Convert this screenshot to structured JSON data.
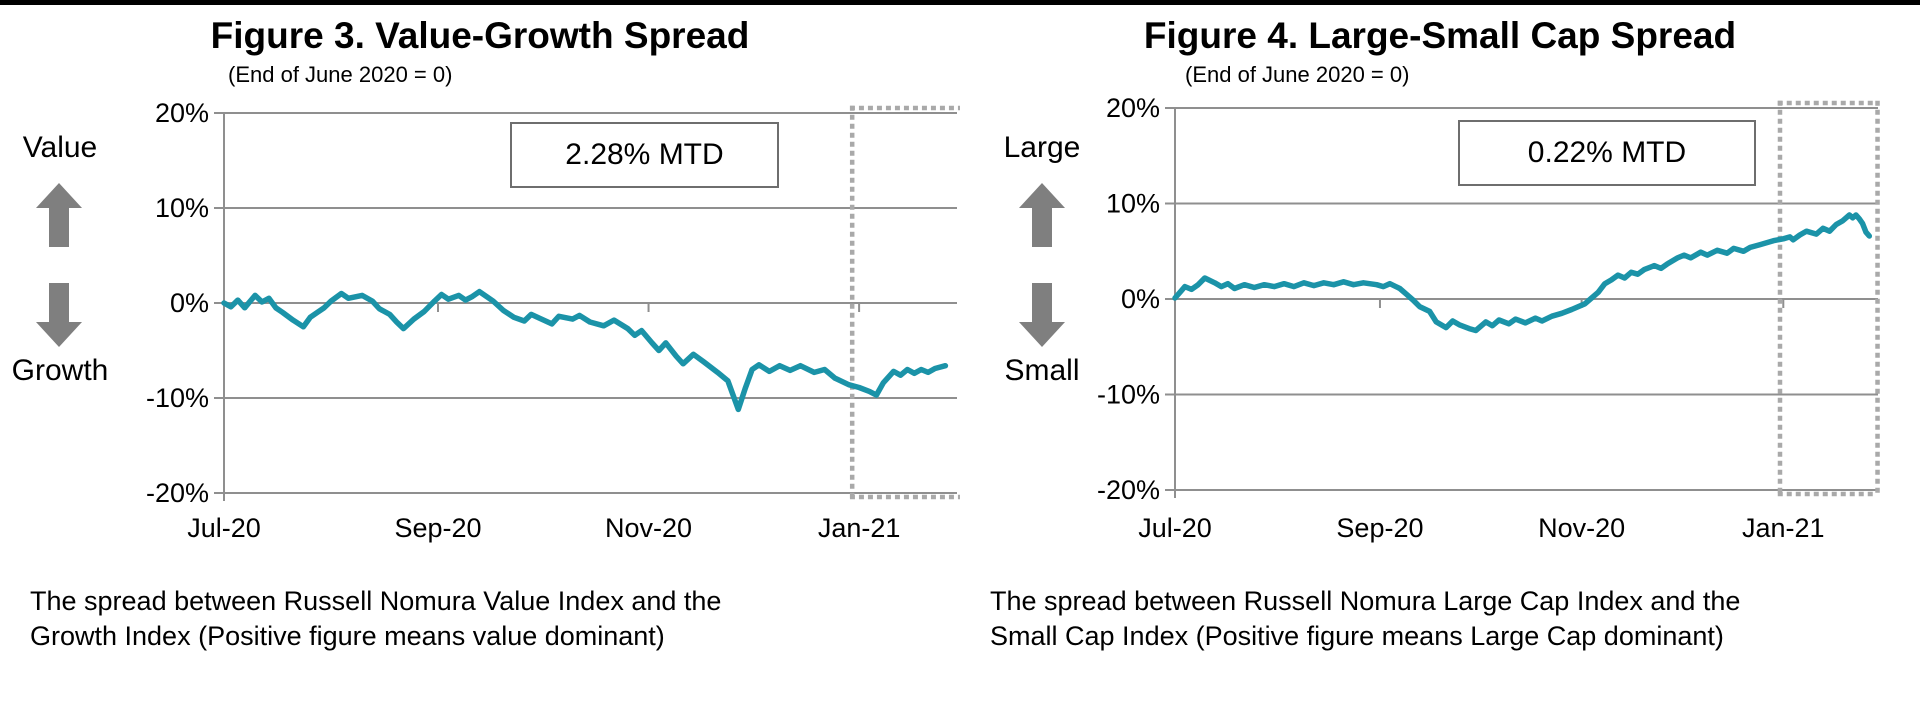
{
  "page": {
    "background_color": "#ffffff",
    "top_bar_color": "#000000",
    "line_color": "#1b93a8",
    "grid_color": "#8f8f8f",
    "highlight_color": "#a9a9a9",
    "arrow_color": "#7f7f7f"
  },
  "figures": [
    {
      "side_top_label": "Value",
      "side_bottom_label": "Growth",
      "caption": [
        "The spread between Russell Nomura Value Index and the",
        "Growth Index (Positive figure means value dominant)"
      ]
    },
    {
      "side_top_label": "Large",
      "side_bottom_label": "Small",
      "caption": [
        "The spread between Russell Nomura Large Cap Index and the",
        "Small Cap Index (Positive figure means Large Cap dominant)"
      ]
    }
  ],
  "chart_data": [
    {
      "type": "line",
      "title": "Figure 3. Value-Growth Spread",
      "subtitle": "(End of June 2020 = 0)",
      "annotation": "2.28% MTD",
      "ylim": [
        -20,
        20
      ],
      "ytick_values": [
        20,
        10,
        0,
        -10,
        -20
      ],
      "ytick_labels": [
        "20%",
        "10%",
        "0%",
        "-10%",
        "-20%"
      ],
      "x_unit": "days since 2020-07-01",
      "x_tick_days": [
        0,
        62,
        123,
        184
      ],
      "x_tick_labels": [
        "Jul-20",
        "Sep-20",
        "Nov-20",
        "Jan-21"
      ],
      "grid": true,
      "legend": "none",
      "highlight_box": {
        "start_day": 182,
        "end_day": 214
      },
      "series": [
        {
          "name": "Value minus Growth spread (%)",
          "points": [
            [
              0,
              0.0
            ],
            [
              2,
              -0.4
            ],
            [
              4,
              0.3
            ],
            [
              6,
              -0.5
            ],
            [
              9,
              0.8
            ],
            [
              11,
              0.1
            ],
            [
              13,
              0.5
            ],
            [
              15,
              -0.5
            ],
            [
              17,
              -1.0
            ],
            [
              20,
              -1.8
            ],
            [
              23,
              -2.5
            ],
            [
              25,
              -1.5
            ],
            [
              27,
              -1.0
            ],
            [
              29,
              -0.5
            ],
            [
              31,
              0.2
            ],
            [
              34,
              1.0
            ],
            [
              36,
              0.5
            ],
            [
              40,
              0.8
            ],
            [
              43,
              0.2
            ],
            [
              45,
              -0.6
            ],
            [
              48,
              -1.2
            ],
            [
              50,
              -2.0
            ],
            [
              52,
              -2.7
            ],
            [
              55,
              -1.7
            ],
            [
              58,
              -0.9
            ],
            [
              61,
              0.2
            ],
            [
              63,
              0.9
            ],
            [
              65,
              0.4
            ],
            [
              68,
              0.8
            ],
            [
              70,
              0.3
            ],
            [
              72,
              0.7
            ],
            [
              74,
              1.2
            ],
            [
              76,
              0.7
            ],
            [
              78,
              0.2
            ],
            [
              81,
              -0.8
            ],
            [
              84,
              -1.5
            ],
            [
              87,
              -1.9
            ],
            [
              89,
              -1.2
            ],
            [
              92,
              -1.7
            ],
            [
              95,
              -2.2
            ],
            [
              97,
              -1.4
            ],
            [
              101,
              -1.7
            ],
            [
              103,
              -1.3
            ],
            [
              106,
              -2.0
            ],
            [
              110,
              -2.4
            ],
            [
              113,
              -1.8
            ],
            [
              117,
              -2.7
            ],
            [
              119,
              -3.4
            ],
            [
              121,
              -2.9
            ],
            [
              124,
              -4.2
            ],
            [
              126,
              -5.0
            ],
            [
              128,
              -4.2
            ],
            [
              131,
              -5.6
            ],
            [
              133,
              -6.4
            ],
            [
              136,
              -5.4
            ],
            [
              139,
              -6.2
            ],
            [
              143,
              -7.3
            ],
            [
              146,
              -8.2
            ],
            [
              149,
              -11.2
            ],
            [
              151,
              -9.0
            ],
            [
              153,
              -7.0
            ],
            [
              155,
              -6.5
            ],
            [
              158,
              -7.2
            ],
            [
              161,
              -6.6
            ],
            [
              164,
              -7.1
            ],
            [
              167,
              -6.6
            ],
            [
              171,
              -7.3
            ],
            [
              174,
              -7.0
            ],
            [
              177,
              -7.9
            ],
            [
              181,
              -8.6
            ],
            [
              184,
              -8.9
            ],
            [
              187,
              -9.3
            ],
            [
              189,
              -9.7
            ],
            [
              191,
              -8.4
            ],
            [
              194,
              -7.2
            ],
            [
              196,
              -7.6
            ],
            [
              198,
              -7.0
            ],
            [
              200,
              -7.4
            ],
            [
              202,
              -7.0
            ],
            [
              204,
              -7.3
            ],
            [
              206,
              -6.9
            ],
            [
              209,
              -6.6
            ]
          ]
        }
      ]
    },
    {
      "type": "line",
      "title": "Figure 4. Large-Small Cap Spread",
      "subtitle": "(End of June 2020 = 0)",
      "annotation": "0.22% MTD",
      "ylim": [
        -20,
        20
      ],
      "ytick_values": [
        20,
        10,
        0,
        -10,
        -20
      ],
      "ytick_labels": [
        "20%",
        "10%",
        "0%",
        "-10%",
        "-20%"
      ],
      "x_unit": "days since 2020-07-01",
      "x_tick_days": [
        0,
        62,
        123,
        184
      ],
      "x_tick_labels": [
        "Jul-20",
        "Sep-20",
        "Nov-20",
        "Jan-21"
      ],
      "grid": true,
      "legend": "none",
      "highlight_box": {
        "start_day": 183,
        "end_day": 212.5
      },
      "series": [
        {
          "name": "Large Cap minus Small Cap spread (%)",
          "points": [
            [
              0,
              0.1
            ],
            [
              2,
              0.9
            ],
            [
              3,
              1.3
            ],
            [
              5,
              1.0
            ],
            [
              7,
              1.5
            ],
            [
              9,
              2.2
            ],
            [
              12,
              1.7
            ],
            [
              14,
              1.3
            ],
            [
              16,
              1.6
            ],
            [
              18,
              1.1
            ],
            [
              21,
              1.5
            ],
            [
              24,
              1.2
            ],
            [
              27,
              1.5
            ],
            [
              30,
              1.3
            ],
            [
              33,
              1.6
            ],
            [
              36,
              1.3
            ],
            [
              39,
              1.7
            ],
            [
              42,
              1.4
            ],
            [
              45,
              1.7
            ],
            [
              48,
              1.5
            ],
            [
              51,
              1.8
            ],
            [
              54,
              1.5
            ],
            [
              57,
              1.7
            ],
            [
              61,
              1.5
            ],
            [
              63,
              1.3
            ],
            [
              65,
              1.6
            ],
            [
              68,
              1.1
            ],
            [
              70,
              0.5
            ],
            [
              72,
              -0.1
            ],
            [
              74,
              -0.8
            ],
            [
              77,
              -1.3
            ],
            [
              79,
              -2.4
            ],
            [
              82,
              -3.0
            ],
            [
              84,
              -2.3
            ],
            [
              86,
              -2.7
            ],
            [
              89,
              -3.1
            ],
            [
              91,
              -3.3
            ],
            [
              94,
              -2.4
            ],
            [
              96,
              -2.8
            ],
            [
              98,
              -2.2
            ],
            [
              101,
              -2.6
            ],
            [
              103,
              -2.1
            ],
            [
              106,
              -2.5
            ],
            [
              109,
              -2.0
            ],
            [
              111,
              -2.3
            ],
            [
              114,
              -1.8
            ],
            [
              117,
              -1.5
            ],
            [
              120,
              -1.1
            ],
            [
              124,
              -0.5
            ],
            [
              126,
              0.1
            ],
            [
              128,
              0.7
            ],
            [
              130,
              1.6
            ],
            [
              132,
              2.0
            ],
            [
              134,
              2.5
            ],
            [
              136,
              2.2
            ],
            [
              138,
              2.8
            ],
            [
              140,
              2.6
            ],
            [
              142,
              3.1
            ],
            [
              145,
              3.5
            ],
            [
              147,
              3.2
            ],
            [
              149,
              3.7
            ],
            [
              152,
              4.3
            ],
            [
              154,
              4.6
            ],
            [
              156,
              4.3
            ],
            [
              159,
              4.9
            ],
            [
              161,
              4.6
            ],
            [
              164,
              5.1
            ],
            [
              167,
              4.8
            ],
            [
              169,
              5.3
            ],
            [
              172,
              5.0
            ],
            [
              174,
              5.4
            ],
            [
              177,
              5.7
            ],
            [
              181,
              6.1
            ],
            [
              184,
              6.3
            ],
            [
              186,
              6.5
            ],
            [
              187,
              6.2
            ],
            [
              189,
              6.7
            ],
            [
              191,
              7.1
            ],
            [
              194,
              6.8
            ],
            [
              196,
              7.4
            ],
            [
              198,
              7.1
            ],
            [
              200,
              7.8
            ],
            [
              202,
              8.2
            ],
            [
              204,
              8.8
            ],
            [
              205,
              8.5
            ],
            [
              206,
              8.8
            ],
            [
              207,
              8.4
            ],
            [
              208,
              7.9
            ],
            [
              209,
              7.0
            ],
            [
              210,
              6.6
            ]
          ]
        }
      ]
    }
  ]
}
